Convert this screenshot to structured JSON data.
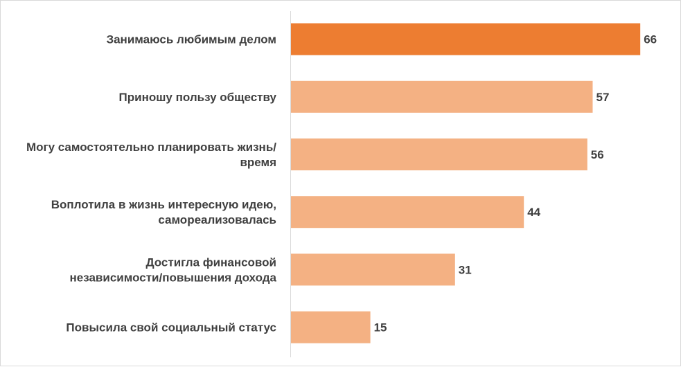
{
  "chart_data": {
    "type": "bar",
    "orientation": "horizontal",
    "categories": [
      "Занимаюсь любимым делом",
      "Приношу пользу обществу",
      "Могу самостоятельно планировать жизнь/ время",
      "Воплотила в жизнь интересную идею, самореализовалась",
      "Достигла финансовой независимости/повышения дохода",
      "Повысила свой социальный статус"
    ],
    "category_lines": [
      [
        "Занимаюсь любимым делом"
      ],
      [
        "Приношу пользу обществу"
      ],
      [
        "Могу самостоятельно планировать жизнь/",
        "время"
      ],
      [
        "Воплотила в жизнь интересную идею,",
        "самореализовалась"
      ],
      [
        "Достигла финансовой",
        "независимости/повышения дохода"
      ],
      [
        "Повысила свой социальный статус"
      ]
    ],
    "values": [
      66,
      57,
      56,
      44,
      31,
      15
    ],
    "value_labels": [
      "66",
      "57",
      "56",
      "44",
      "31",
      "15"
    ],
    "xlim": [
      0,
      70
    ],
    "highlight_index": 0,
    "colors": {
      "highlight": "#ed7d31",
      "bar": "#f4b183",
      "axis": "#d9d9d9",
      "text": "#404040"
    },
    "grid": false,
    "legend": "none",
    "title": "",
    "xlabel": "",
    "ylabel": ""
  }
}
